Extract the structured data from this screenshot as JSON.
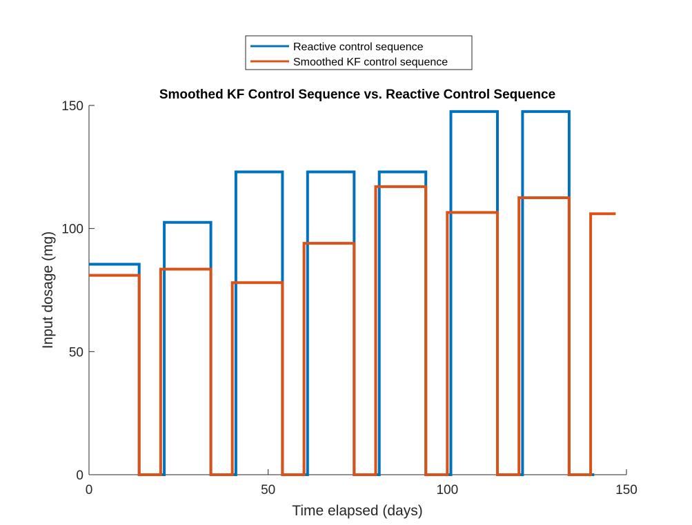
{
  "chart_data": {
    "type": "line",
    "title": "Smoothed KF Control Sequence vs. Reactive Control Sequence",
    "xlabel": "Time elapsed (days)",
    "ylabel": "Input dosage (mg)",
    "xlim": [
      0,
      150
    ],
    "ylim": [
      0,
      150
    ],
    "xticks": [
      0,
      50,
      100,
      150
    ],
    "yticks": [
      0,
      50,
      100,
      150
    ],
    "grid": false,
    "legend_position": "top-center-outside",
    "series": [
      {
        "name": "Reactive control sequence",
        "color": "#0072BD",
        "x": [
          0,
          14,
          14,
          21,
          21,
          34,
          34,
          41,
          41,
          54,
          54,
          61,
          61,
          74,
          74,
          81,
          81,
          94,
          94,
          101,
          101,
          114,
          114,
          121,
          121,
          134,
          134,
          141
        ],
        "y": [
          85.5,
          85.5,
          0,
          0,
          102.5,
          102.5,
          0,
          0,
          123,
          123,
          0,
          0,
          123,
          123,
          0,
          0,
          123,
          123,
          0,
          0,
          147.5,
          147.5,
          0,
          0,
          147.5,
          147.5,
          0,
          0
        ]
      },
      {
        "name": "Smoothed KF control sequence",
        "color": "#D95319",
        "x": [
          0,
          14,
          14,
          20,
          20,
          34,
          34,
          40,
          40,
          54,
          54,
          60,
          60,
          74,
          74,
          80,
          80,
          94,
          94,
          100,
          100,
          114,
          114,
          120,
          120,
          134,
          134,
          140,
          140,
          147
        ],
        "y": [
          81,
          81,
          0,
          0,
          83.5,
          83.5,
          0,
          0,
          78,
          78,
          0,
          0,
          94,
          94,
          0,
          0,
          117,
          117,
          0,
          0,
          106.5,
          106.5,
          0,
          0,
          112.5,
          112.5,
          0,
          0,
          106,
          106
        ]
      }
    ]
  }
}
